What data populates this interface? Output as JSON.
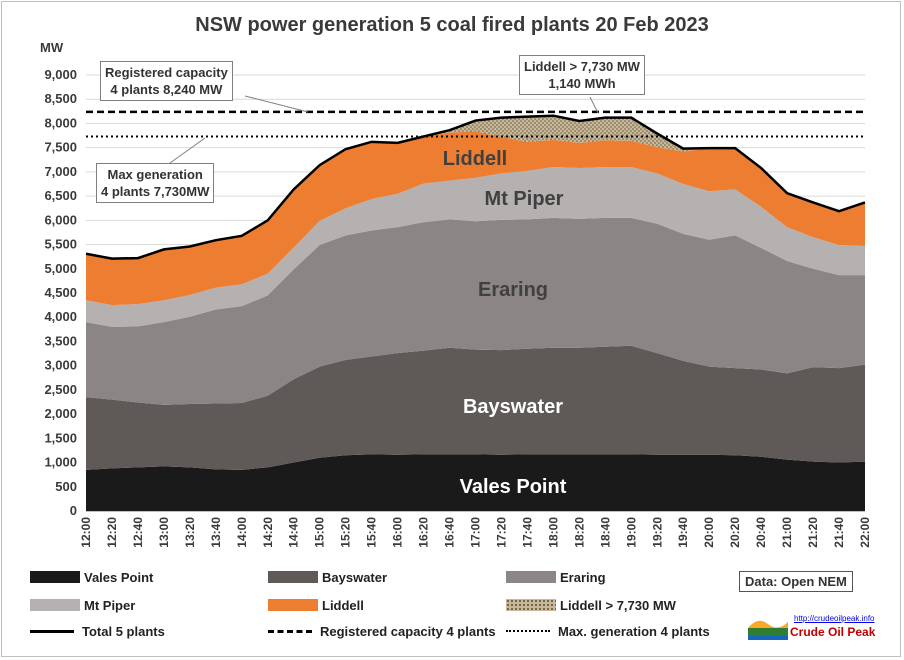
{
  "chart_data": {
    "type": "area",
    "title": "NSW power generation 5 coal fired plants 20 Feb 2023",
    "ylabel": "MW",
    "ylim": [
      0,
      9000
    ],
    "yticks": [
      "0",
      "500",
      "1,000",
      "1,500",
      "2,000",
      "2,500",
      "3,000",
      "3,500",
      "4,000",
      "4,500",
      "5,000",
      "5,500",
      "6,000",
      "6,500",
      "7,000",
      "7,500",
      "8,000",
      "8,500",
      "9,000"
    ],
    "x_tick_labels": [
      "12:00",
      "12:20",
      "12:40",
      "13:00",
      "13:20",
      "13:40",
      "14:00",
      "14:20",
      "14:40",
      "15:00",
      "15:20",
      "15:40",
      "16:00",
      "16:20",
      "16:40",
      "17:00",
      "17:20",
      "17:40",
      "18:00",
      "18:20",
      "18:40",
      "19:00",
      "19:20",
      "19:40",
      "20:00",
      "20:20",
      "20:40",
      "21:00",
      "21:20",
      "21:40",
      "22:00"
    ],
    "x": [
      "12:00",
      "12:20",
      "12:40",
      "13:00",
      "13:20",
      "13:40",
      "14:00",
      "14:20",
      "14:40",
      "15:00",
      "15:20",
      "15:40",
      "16:00",
      "16:20",
      "16:40",
      "17:00",
      "17:20",
      "17:40",
      "18:00",
      "18:20",
      "18:40",
      "19:00",
      "19:20",
      "19:40",
      "20:00",
      "20:20",
      "20:40",
      "21:00",
      "21:20",
      "21:40",
      "22:00"
    ],
    "series": [
      {
        "name": "Vales Point",
        "color": "#1a1a1a",
        "values": [
          850,
          880,
          900,
          920,
          900,
          860,
          850,
          900,
          1000,
          1100,
          1150,
          1170,
          1160,
          1170,
          1170,
          1170,
          1160,
          1170,
          1170,
          1170,
          1170,
          1170,
          1160,
          1160,
          1160,
          1150,
          1120,
          1060,
          1020,
          1000,
          1020
        ]
      },
      {
        "name": "Bayswater",
        "color": "#5f5a58",
        "values": [
          1500,
          1420,
          1340,
          1270,
          1310,
          1360,
          1380,
          1480,
          1720,
          1880,
          1970,
          2020,
          2100,
          2140,
          2200,
          2160,
          2160,
          2180,
          2200,
          2200,
          2220,
          2240,
          2100,
          1940,
          1820,
          1800,
          1800,
          1780,
          1950,
          1950,
          2000
        ]
      },
      {
        "name": "Eraring",
        "color": "#8b8685",
        "values": [
          1550,
          1500,
          1570,
          1710,
          1800,
          1940,
          2000,
          2070,
          2270,
          2510,
          2570,
          2600,
          2600,
          2650,
          2650,
          2650,
          2690,
          2670,
          2680,
          2660,
          2660,
          2640,
          2670,
          2620,
          2620,
          2740,
          2510,
          2320,
          2030,
          1920,
          1850
        ]
      },
      {
        "name": "Mt Piper",
        "color": "#b5b1b0",
        "values": [
          450,
          450,
          460,
          450,
          450,
          450,
          450,
          450,
          450,
          500,
          560,
          650,
          690,
          800,
          800,
          900,
          960,
          1000,
          1050,
          1050,
          1050,
          1050,
          1040,
          1030,
          1000,
          950,
          850,
          700,
          650,
          620,
          600
        ]
      },
      {
        "name": "Liddell",
        "color": "#ed7d31",
        "values": [
          960,
          960,
          950,
          1050,
          1000,
          980,
          1000,
          1100,
          1200,
          1150,
          1220,
          1180,
          1050,
          970,
          990,
          960,
          750,
          600,
          560,
          520,
          550,
          540,
          540,
          670,
          890,
          850,
          800,
          700,
          720,
          700,
          900
        ]
      },
      {
        "name": "Liddell > 7,730 MW",
        "color": "#c8b89a",
        "values": [
          0,
          0,
          0,
          0,
          0,
          0,
          0,
          0,
          0,
          0,
          0,
          0,
          0,
          0,
          50,
          220,
          400,
          520,
          500,
          450,
          470,
          480,
          280,
          60,
          0,
          0,
          0,
          0,
          0,
          0,
          0
        ]
      }
    ],
    "total": {
      "name": "Total 5 plants",
      "values": [
        5310,
        5210,
        5220,
        5400,
        5460,
        5590,
        5680,
        6000,
        6640,
        7140,
        7470,
        7620,
        7600,
        7730,
        7860,
        8060,
        8120,
        8140,
        8160,
        8050,
        8120,
        8120,
        7790,
        7480,
        7490,
        7490,
        7080,
        6560,
        6370,
        6190,
        6370
      ]
    },
    "reference_lines": [
      {
        "name": "Registered capacity 4 plants",
        "value": 8240,
        "style": "dashed"
      },
      {
        "name": "Max. generation 4 plants",
        "value": 7730,
        "style": "dotted"
      }
    ],
    "area_labels": [
      "Vales Point",
      "Bayswater",
      "Eraring",
      "Mt Piper",
      "Liddell"
    ],
    "annotations": [
      {
        "text": "Registered capacity\n4 plants 8,240 MW"
      },
      {
        "text": "Max generation\n4 plants 7,730MW"
      },
      {
        "text": "Liddell > 7,730 MW\n1,140 MWh"
      }
    ],
    "legend": {
      "position": "bottom",
      "items": [
        {
          "label": "Vales Point",
          "color": "#1a1a1a",
          "kind": "fill"
        },
        {
          "label": "Bayswater",
          "color": "#5f5a58",
          "kind": "fill"
        },
        {
          "label": "Eraring",
          "color": "#8b8685",
          "kind": "fill"
        },
        {
          "label": "Mt Piper",
          "color": "#b5b1b0",
          "kind": "fill"
        },
        {
          "label": "Liddell",
          "color": "#ed7d31",
          "kind": "fill"
        },
        {
          "label": "Liddell > 7,730 MW",
          "color": "#c8b89a",
          "kind": "pattern"
        },
        {
          "label": "Total 5 plants",
          "color": "#000000",
          "kind": "solid"
        },
        {
          "label": "Registered capacity 4 plants",
          "color": "#000000",
          "kind": "dashed"
        },
        {
          "label": "Max. generation 4 plants",
          "color": "#000000",
          "kind": "dotted"
        }
      ]
    }
  },
  "source": "Data: Open NEM",
  "logo": {
    "url_text": "http://crudeoilpeak.info",
    "name": "Crude Oil Peak"
  }
}
